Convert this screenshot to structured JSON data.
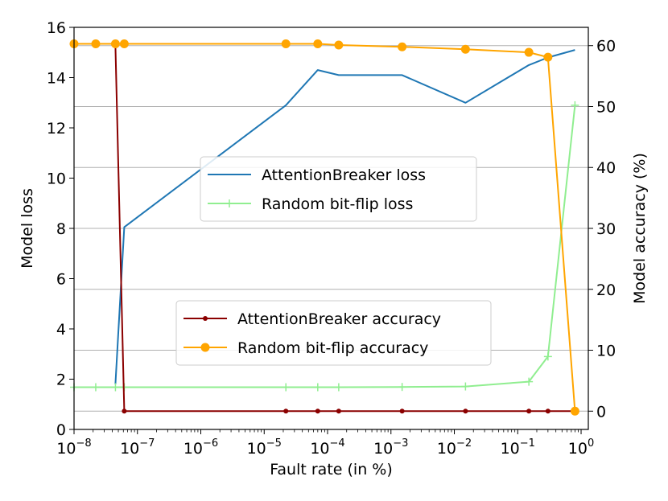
{
  "chart_data": {
    "type": "line",
    "xlabel": "Fault rate (in %)",
    "ylabel_left": "Model loss",
    "ylabel_right": "Model accuracy (%)",
    "x_scale": "log",
    "xlim": [
      1e-08,
      1.3
    ],
    "ylim_left": [
      0,
      16
    ],
    "ylim_right": [
      -3,
      63
    ],
    "x_ticks": [
      {
        "value": 1e-08,
        "base": "10",
        "exp": "−8"
      },
      {
        "value": 1e-07,
        "base": "10",
        "exp": "−7"
      },
      {
        "value": 1e-06,
        "base": "10",
        "exp": "−6"
      },
      {
        "value": 1e-05,
        "base": "10",
        "exp": "−5"
      },
      {
        "value": 0.0001,
        "base": "10",
        "exp": "−4"
      },
      {
        "value": 0.001,
        "base": "10",
        "exp": "−3"
      },
      {
        "value": 0.01,
        "base": "10",
        "exp": "−2"
      },
      {
        "value": 0.1,
        "base": "10",
        "exp": "−1"
      },
      {
        "value": 1,
        "base": "10",
        "exp": "0"
      }
    ],
    "y_ticks_left": [
      0,
      2,
      4,
      6,
      8,
      10,
      12,
      14,
      16
    ],
    "y_ticks_right": [
      0,
      10,
      20,
      30,
      40,
      50,
      60
    ],
    "grid": "horizontal, right axis",
    "legends": [
      {
        "placement": "center",
        "entries": [
          {
            "label": "AttentionBreaker loss",
            "color": "#1f77b4",
            "marker": "none"
          },
          {
            "label": "Random bit-flip loss",
            "color": "#90ee90",
            "marker": "plus"
          }
        ]
      },
      {
        "placement": "lower-center",
        "entries": [
          {
            "label": "AttentionBreaker accuracy",
            "color": "#8b0000",
            "marker": "dot"
          },
          {
            "label": "Random bit-flip accuracy",
            "color": "#ffa500",
            "marker": "circle"
          }
        ]
      }
    ],
    "series": [
      {
        "name": "AttentionBreaker loss",
        "axis": "left",
        "color": "#1f77b4",
        "marker": "none",
        "x": [
          4.5e-08,
          6.2e-08,
          2.2e-05,
          7e-05,
          0.00015,
          0.0015,
          0.015,
          0.15,
          0.3,
          0.8
        ],
        "y": [
          1.8,
          8.05,
          12.9,
          14.3,
          14.1,
          14.1,
          13.0,
          14.5,
          14.8,
          15.1
        ]
      },
      {
        "name": "Random bit-flip loss",
        "axis": "left",
        "color": "#90ee90",
        "marker": "plus",
        "x": [
          1e-08,
          2.2e-08,
          4.5e-08,
          6.2e-08,
          2.2e-05,
          7e-05,
          0.00015,
          0.0015,
          0.015,
          0.15,
          0.3,
          0.8
        ],
        "y": [
          1.68,
          1.68,
          1.68,
          1.68,
          1.68,
          1.68,
          1.68,
          1.69,
          1.71,
          1.9,
          2.9,
          12.9
        ]
      },
      {
        "name": "AttentionBreaker accuracy",
        "axis": "right",
        "color": "#8b0000",
        "marker": "dot",
        "x": [
          4.5e-08,
          6.2e-08,
          2.2e-05,
          7e-05,
          0.00015,
          0.0015,
          0.015,
          0.15,
          0.3,
          0.8
        ],
        "y": [
          60.0,
          0,
          0,
          0,
          0,
          0,
          0,
          0,
          0,
          0
        ]
      },
      {
        "name": "Random bit-flip accuracy",
        "axis": "right",
        "color": "#ffa500",
        "marker": "circle",
        "x": [
          1e-08,
          2.2e-08,
          4.5e-08,
          6.2e-08,
          2.2e-05,
          7e-05,
          0.00015,
          0.0015,
          0.015,
          0.15,
          0.3,
          0.8
        ],
        "y": [
          60.3,
          60.3,
          60.3,
          60.3,
          60.3,
          60.3,
          60.1,
          59.8,
          59.4,
          58.9,
          58.1,
          0
        ]
      }
    ]
  }
}
